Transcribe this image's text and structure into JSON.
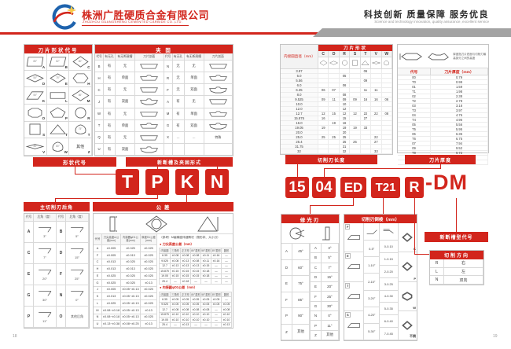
{
  "header": {
    "company_cn": "株洲广胜硬质合金有限公司",
    "company_en": "ZHUZHOU GUANGSHENG CEMENTED CARBIDE CO.,LTD.",
    "slogan_cn": "科技创新 质量保障 服务优良",
    "slogan_en": "Science and technology innovation, quality assurance, excellent service"
  },
  "colors": {
    "red": "#d2251c",
    "gray_band": "#a3a3a3"
  },
  "left_page": {
    "shape_table": {
      "title": "刀片形状代号",
      "cells": [
        {
          "code": "A",
          "kind": "para85",
          "angle": "85°"
        },
        {
          "code": "B",
          "kind": "para82",
          "angle": "82°"
        },
        {
          "code": "C",
          "kind": "diamond80",
          "angle": "80°"
        },
        {
          "code": "D",
          "kind": "diamond55",
          "angle": "55°"
        },
        {
          "code": "E",
          "kind": "diamond75",
          "angle": "75°"
        },
        {
          "code": "H",
          "kind": "hexagon",
          "angle": ""
        },
        {
          "code": "K",
          "kind": "para55",
          "angle": "55°"
        },
        {
          "code": "L",
          "kind": "rect",
          "angle": ""
        },
        {
          "code": "M",
          "kind": "diamond86",
          "angle": "86°"
        },
        {
          "code": "O",
          "kind": "octagon",
          "angle": ""
        },
        {
          "code": "P",
          "kind": "pentagon",
          "angle": ""
        },
        {
          "code": "R",
          "kind": "circle",
          "angle": ""
        },
        {
          "code": "S",
          "kind": "square",
          "angle": ""
        },
        {
          "code": "T",
          "kind": "triangle",
          "angle": ""
        },
        {
          "code": "T",
          "kind": "trigon",
          "angle": "75°"
        },
        {
          "code": "V",
          "kind": "diamond35",
          "angle": "35°"
        },
        {
          "code": "W",
          "kind": "trigon",
          "angle": "80°"
        },
        {
          "code": "Z",
          "kind": "other",
          "angle": "",
          "label": "其他"
        }
      ]
    },
    "fixing_table": {
      "title": "夹 固",
      "headers": [
        "代号",
        "有无孔",
        "有无断屑槽",
        "刀片剖面"
      ],
      "left_rows": [
        [
          "B",
          "有",
          "无"
        ],
        [
          "H",
          "有",
          "单面"
        ],
        [
          "C",
          "有",
          "无"
        ],
        [
          "J",
          "有",
          "双面"
        ],
        [
          "W",
          "有",
          "无"
        ],
        [
          "T",
          "有",
          "单面"
        ],
        [
          "Q",
          "有",
          "无"
        ],
        [
          "U",
          "有",
          "双面"
        ]
      ],
      "right_rows": [
        [
          "N",
          "无",
          "无"
        ],
        [
          "R",
          "无",
          "单面"
        ],
        [
          "F",
          "无",
          "双面"
        ],
        [
          "A",
          "有",
          "无"
        ],
        [
          "M",
          "有",
          "单面"
        ],
        [
          "G",
          "有",
          "双面"
        ],
        [
          "X",
          "…",
          "…",
          "特殊"
        ],
        [
          "",
          "",
          ""
        ]
      ]
    },
    "label_shape_code": "形状代号",
    "label_chipbreaker_form": "新断槽及夹固形式",
    "code_letters": [
      "T",
      "P",
      "K",
      "N"
    ],
    "clearance_table": {
      "title": "主切削刃后角",
      "headers": [
        "代号",
        "后角（度）",
        "代号",
        "后角（度）"
      ],
      "rows": [
        [
          "A",
          "3°",
          "B",
          "5°"
        ],
        [
          "C",
          "7°",
          "D",
          "15°"
        ],
        [
          "E",
          "20°",
          "F",
          "25°"
        ],
        [
          "G",
          "30°",
          "N",
          "0°"
        ],
        [
          "P",
          "11°",
          "O",
          "其他后角"
        ]
      ]
    },
    "tolerance_table": {
      "title": "公  差",
      "headers": [
        "代号",
        "刀尖高度m公差(mm)",
        "内接圆φD1公差(mm)",
        "厚度S1公差(mm)"
      ],
      "rows": [
        [
          "A",
          "±0.005",
          "±0.025",
          "±0.025"
        ],
        [
          "F",
          "±0.005",
          "±0.013",
          "±0.025"
        ],
        [
          "C",
          "±0.013",
          "±0.025",
          "±0.025"
        ],
        [
          "H",
          "±0.013",
          "±0.013",
          "±0.025"
        ],
        [
          "E",
          "±0.025",
          "±0.025",
          "±0.025"
        ],
        [
          "G",
          "±0.025",
          "±0.025",
          "±0.13"
        ],
        [
          "J",
          "±0.005",
          "±0.05~±0.13",
          "±0.025"
        ],
        [
          "K",
          "±0.013",
          "±0.05~±0.13",
          "±0.025"
        ],
        [
          "L",
          "±0.025",
          "±0.05~±0.13",
          "±0.025"
        ],
        [
          "M",
          "±0.08~±0.18",
          "±0.05~±0.13",
          "±0.13"
        ],
        [
          "N",
          "±0.08~±0.18",
          "±0.05~±0.13",
          "±0.025"
        ],
        [
          "U",
          "±0.13~±0.38",
          "±0.08~±0.25",
          "±0.13"
        ]
      ],
      "ref_note": "（参考）M级精度详细情况（按形状、大小分）",
      "sub_headers": [
        "内接圆",
        "三角形",
        "正方形",
        "80°菱形",
        "55°菱形",
        "35°菱形",
        "圆形"
      ],
      "sub1_title": "刀尖高度公差（mm）",
      "sub1_rows": [
        [
          "6.35",
          "±0.08",
          "±0.08",
          "±0.08",
          "±0.11",
          "±0.16",
          "—"
        ],
        [
          "9.525",
          "±0.08",
          "±0.13",
          "±0.08",
          "±0.11",
          "±0.16",
          "—"
        ],
        [
          "12.7",
          "±0.13",
          "±0.13",
          "±0.13",
          "±0.15",
          "—",
          "—"
        ],
        [
          "15.875",
          "±0.15",
          "±0.15",
          "±0.15",
          "±0.18",
          "—",
          "—"
        ],
        [
          "19.05",
          "±0.15",
          "±0.15",
          "±0.15",
          "±0.18",
          "—",
          "—"
        ],
        [
          "25.4",
          "—",
          "±0.18",
          "—",
          "—",
          "—",
          "—"
        ]
      ],
      "sub2_title": "内接圆φD1公差（mm）",
      "sub2_rows": [
        [
          "6.35",
          "±0.05",
          "±0.05",
          "±0.05",
          "±0.05",
          "±0.05",
          "—"
        ],
        [
          "9.525",
          "±0.05",
          "±0.05",
          "±0.05",
          "±0.05",
          "±0.05",
          "±0.05"
        ],
        [
          "12.7",
          "±0.08",
          "±0.08",
          "±0.08",
          "±0.08",
          "—",
          "±0.08"
        ],
        [
          "15.875",
          "±0.10",
          "±0.10",
          "±0.10",
          "±0.10",
          "—",
          "±0.10"
        ],
        [
          "19.05",
          "±0.10",
          "±0.10",
          "±0.10",
          "±0.10",
          "—",
          "±0.10"
        ],
        [
          "25.4",
          "—",
          "±0.13",
          "—",
          "—",
          "—",
          "±0.13"
        ]
      ]
    }
  },
  "right_page": {
    "ic_table": {
      "title": "刀片形状",
      "left_header": "内接圆直径（mm）",
      "shape_cols": [
        "C",
        "D",
        "R",
        "S",
        "T",
        "V",
        "W"
      ],
      "rows": [
        [
          "3.97",
          "",
          "",
          "",
          "",
          "06",
          "",
          ""
        ],
        [
          "5.0",
          "",
          "",
          "05",
          "",
          "",
          "",
          ""
        ],
        [
          "5.56",
          "",
          "",
          "",
          "",
          "09",
          "",
          ""
        ],
        [
          "6.0",
          "",
          "",
          "06",
          "",
          "",
          "",
          ""
        ],
        [
          "6.35",
          "06",
          "07",
          "",
          "",
          "11",
          "11",
          ""
        ],
        [
          "8.0",
          "",
          "",
          "08",
          "",
          "",
          "",
          ""
        ],
        [
          "9.525",
          "09",
          "11",
          "09",
          "09",
          "16",
          "16",
          "06"
        ],
        [
          "10.0",
          "",
          "",
          "10",
          "",
          "",
          "",
          ""
        ],
        [
          "12.0",
          "",
          "",
          "12",
          "",
          "",
          "",
          ""
        ],
        [
          "12.7",
          "12",
          "15",
          "12",
          "12",
          "22",
          "22",
          "08"
        ],
        [
          "15.875",
          "16",
          "",
          "15",
          "",
          "27",
          "",
          ""
        ],
        [
          "16.0",
          "",
          "19",
          "16",
          "",
          "",
          "",
          ""
        ],
        [
          "19.05",
          "19",
          "",
          "19",
          "19",
          "33",
          "",
          ""
        ],
        [
          "20.0",
          "",
          "",
          "20",
          "",
          "",
          "",
          ""
        ],
        [
          "25.0",
          "25",
          "25",
          "25",
          "",
          "",
          "22",
          ""
        ],
        [
          "25.4",
          "",
          "",
          "25",
          "25",
          "",
          "27",
          ""
        ],
        [
          "31.75",
          "",
          "",
          "31",
          "",
          "",
          "",
          ""
        ],
        [
          "32",
          "",
          "",
          "32",
          "",
          "",
          "33",
          ""
        ]
      ]
    },
    "label_edge_length": "切削刃长度",
    "label_thickness": "刀片厚度",
    "thickness_table": {
      "note": "厚度指刀片底面与切削刃最高部分之间的高度",
      "headers": [
        "代号",
        "刀片厚度（mm）"
      ],
      "rows": [
        [
          "00",
          "0.79"
        ],
        [
          "T0",
          "0.99"
        ],
        [
          "01",
          "1.59"
        ],
        [
          "T1",
          "1.98"
        ],
        [
          "02",
          "2.38"
        ],
        [
          "T2",
          "2.78"
        ],
        [
          "03",
          "3.18"
        ],
        [
          "T3",
          "3.97"
        ],
        [
          "04",
          "4.76"
        ],
        [
          "T4",
          "4.96"
        ],
        [
          "05",
          "5.56"
        ],
        [
          "T5",
          "5.95"
        ],
        [
          "06",
          "6.35"
        ],
        [
          "T6",
          "6.75"
        ],
        [
          "07",
          "7.94"
        ],
        [
          "09",
          "9.52"
        ],
        [
          "T9",
          "9.72"
        ],
        [
          "11",
          "11.11"
        ],
        [
          "12",
          "12.70"
        ]
      ]
    },
    "code_blocks": [
      "15",
      "04",
      "ED",
      "T21",
      "R"
    ],
    "code_suffix": "-DM",
    "wiper_table": {
      "title": "修光刃",
      "left_rows": [
        [
          "A",
          "45°"
        ],
        [
          "D",
          "60°"
        ],
        [
          "E",
          "75°"
        ],
        [
          "F",
          "85°"
        ],
        [
          "P",
          "90°"
        ],
        [
          "Z",
          "其他"
        ]
      ],
      "right_rows": [
        [
          "A",
          "3°"
        ],
        [
          "B",
          "5°"
        ],
        [
          "C",
          "7°"
        ],
        [
          "D",
          "15°"
        ],
        [
          "E",
          "20°"
        ],
        [
          "F",
          "25°"
        ],
        [
          "G",
          "30°"
        ],
        [
          "N",
          "0°"
        ],
        [
          "P",
          "11°"
        ],
        [
          "Z",
          "其他"
        ]
      ]
    },
    "chamfer_table": {
      "title": "切削刃倒棱（mm）",
      "edge_types": [
        "F",
        "E",
        "T",
        "S"
      ],
      "angle_rows": [
        "0-5°",
        "1-10°",
        "2-15°",
        "3-20°",
        "4-25°",
        "5-30°"
      ],
      "width_rows": [
        "0-0.10",
        "1-0.15",
        "2-0.20",
        "3-0.25",
        "4-0.30",
        "5-0.35",
        "6-0.40",
        "7-0.45"
      ],
      "corner_labels": [
        "K",
        "P",
        "W",
        "不倒"
      ]
    },
    "label_chipbreaker_code": "新断槽型代号",
    "direction_table": {
      "title": "切削方向",
      "rows": [
        [
          "R",
          "右"
        ],
        [
          "L",
          "左"
        ],
        [
          "N",
          "双向"
        ]
      ]
    }
  },
  "footer": {
    "page_left": "18",
    "page_right": "19"
  }
}
